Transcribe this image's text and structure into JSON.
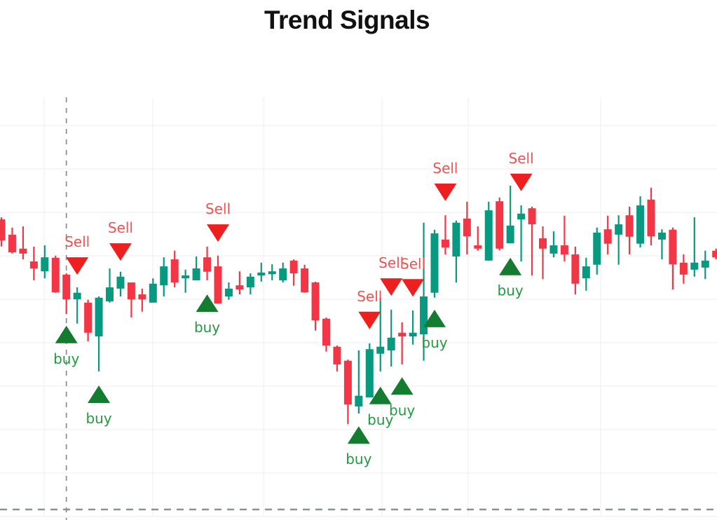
{
  "title": "Trend Signals",
  "colors": {
    "background": "#ffffff",
    "title": "#111111",
    "candle_up": "#089981",
    "candle_down": "#f23645",
    "buy_marker": "#147c2e",
    "buy_label": "#1f9c3f",
    "sell_marker": "#ee1f1f",
    "sell_label": "#f15252",
    "grid": "#ececec",
    "dashed_line": "#8b919a"
  },
  "chart_data": {
    "type": "candlestick",
    "title": "Trend Signals",
    "xlabel": "",
    "ylabel": "",
    "ylim": [
      0,
      100
    ],
    "grid": true,
    "legend": "none",
    "ohlc_note": "values in relative price units 0-100, candles left to right, format [open, high, low, close]",
    "candles": [
      [
        70.4,
        70.9,
        63.8,
        65.3
      ],
      [
        66.7,
        68.4,
        62.1,
        62.4
      ],
      [
        63.3,
        68.7,
        60.7,
        62.1
      ],
      [
        60.2,
        63.8,
        55.6,
        58.5
      ],
      [
        57.8,
        64.1,
        56.1,
        61.2
      ],
      [
        61.1,
        61.6,
        52.6,
        52.7
      ],
      [
        57.0,
        57.3,
        47.4,
        51.0
      ],
      [
        51.0,
        53.9,
        45.1,
        52.6
      ],
      [
        50.2,
        50.9,
        40.8,
        42.9
      ],
      [
        42.0,
        51.7,
        33.5,
        51.4
      ],
      [
        50.5,
        58.5,
        50.2,
        53.9
      ],
      [
        53.6,
        57.7,
        51.7,
        56.5
      ],
      [
        55.1,
        55.1,
        46.6,
        51.0
      ],
      [
        52.2,
        53.6,
        48.0,
        51.0
      ],
      [
        50.2,
        56.1,
        50.2,
        54.8
      ],
      [
        54.4,
        61.2,
        51.7,
        59.0
      ],
      [
        60.7,
        62.8,
        53.9,
        55.1
      ],
      [
        56.1,
        58.2,
        52.6,
        56.8
      ],
      [
        55.6,
        61.4,
        55.6,
        58.5
      ],
      [
        61.2,
        63.8,
        55.6,
        57.7
      ],
      [
        59.0,
        61.6,
        50.0,
        50.0
      ],
      [
        51.7,
        55.1,
        50.9,
        53.6
      ],
      [
        54.4,
        57.8,
        52.2,
        53.4
      ],
      [
        53.9,
        57.3,
        52.2,
        56.5
      ],
      [
        56.8,
        59.9,
        55.3,
        57.5
      ],
      [
        57.1,
        59.5,
        55.6,
        57.8
      ],
      [
        55.6,
        59.9,
        55.1,
        58.5
      ],
      [
        60.4,
        60.7,
        54.3,
        57.3
      ],
      [
        58.5,
        59.4,
        52.6,
        52.7
      ],
      [
        55.1,
        55.3,
        43.4,
        45.9
      ],
      [
        46.3,
        46.6,
        38.3,
        39.8
      ],
      [
        39.5,
        39.8,
        33.5,
        35.2
      ],
      [
        36.1,
        36.4,
        20.7,
        25.5
      ],
      [
        25.0,
        38.6,
        23.3,
        27.6
      ],
      [
        27.2,
        40.3,
        27.2,
        38.9
      ],
      [
        37.8,
        51.4,
        33.5,
        39.5
      ],
      [
        38.6,
        48.5,
        34.7,
        41.7
      ],
      [
        42.9,
        45.4,
        35.2,
        42.0
      ],
      [
        42.0,
        48.3,
        40.0,
        42.9
      ],
      [
        42.5,
        69.6,
        36.1,
        51.7
      ],
      [
        52.6,
        67.9,
        51.4,
        67.0
      ],
      [
        65.5,
        71.4,
        61.9,
        63.6
      ],
      [
        61.4,
        70.1,
        55.1,
        69.6
      ],
      [
        70.6,
        74.7,
        61.9,
        66.3
      ],
      [
        64.1,
        68.7,
        62.8,
        63.3
      ],
      [
        60.4,
        74.7,
        60.4,
        72.6
      ],
      [
        74.8,
        75.7,
        62.9,
        63.3
      ],
      [
        64.6,
        78.6,
        64.6,
        68.9
      ],
      [
        70.4,
        73.8,
        60.2,
        71.8
      ],
      [
        73.1,
        73.5,
        56.8,
        69.2
      ],
      [
        65.8,
        68.7,
        55.9,
        63.3
      ],
      [
        62.1,
        67.5,
        61.2,
        64.1
      ],
      [
        64.1,
        71.3,
        60.2,
        61.9
      ],
      [
        61.9,
        63.8,
        52.2,
        54.8
      ],
      [
        56.1,
        61.1,
        53.1,
        59.0
      ],
      [
        59.4,
        68.4,
        57.0,
        67.2
      ],
      [
        68.0,
        71.3,
        61.9,
        64.5
      ],
      [
        66.7,
        71.4,
        59.4,
        69.2
      ],
      [
        71.4,
        73.5,
        61.9,
        66.2
      ],
      [
        64.5,
        76.0,
        63.6,
        73.8
      ],
      [
        75.2,
        78.1,
        64.1,
        66.3
      ],
      [
        65.5,
        68.0,
        60.7,
        67.2
      ],
      [
        67.9,
        68.4,
        53.4,
        59.5
      ],
      [
        59.9,
        61.9,
        54.8,
        57.0
      ],
      [
        58.2,
        70.9,
        56.5,
        59.9
      ],
      [
        58.7,
        62.8,
        55.9,
        60.4
      ],
      [
        62.8,
        63.3,
        60.7,
        61.2
      ]
    ],
    "signals": [
      {
        "candle": 6,
        "type": "buy",
        "label": "buy",
        "level": 44.6
      },
      {
        "candle": 7,
        "type": "sell",
        "label": "Sell",
        "level": 61.2
      },
      {
        "candle": 9,
        "type": "buy",
        "label": "buy",
        "level": 30.1
      },
      {
        "candle": 11,
        "type": "sell",
        "label": "Sell",
        "level": 64.6
      },
      {
        "candle": 19,
        "type": "buy",
        "label": "buy",
        "level": 52.2
      },
      {
        "candle": 20,
        "type": "sell",
        "label": "Sell",
        "level": 69.2
      },
      {
        "candle": 33,
        "type": "buy",
        "label": "buy",
        "level": 20.2
      },
      {
        "candle": 34,
        "type": "sell",
        "label": "Sell",
        "level": 48.0
      },
      {
        "candle": 35,
        "type": "buy",
        "label": "buy",
        "level": 29.8
      },
      {
        "candle": 36,
        "type": "sell",
        "label": "Sell",
        "level": 56.1
      },
      {
        "candle": 37,
        "type": "buy",
        "label": "buy",
        "level": 32.1
      },
      {
        "candle": 38,
        "type": "sell",
        "label": "Sell",
        "level": 55.9
      },
      {
        "candle": 40,
        "type": "buy",
        "label": "buy",
        "level": 48.5
      },
      {
        "candle": 41,
        "type": "sell",
        "label": "Sell",
        "level": 79.1
      },
      {
        "candle": 47,
        "type": "buy",
        "label": "buy",
        "level": 61.1
      },
      {
        "candle": 48,
        "type": "sell",
        "label": "Sell",
        "level": 81.5
      }
    ],
    "reference_lines": [
      {
        "orientation": "vertical",
        "style": "dashed",
        "at_candle": 6
      },
      {
        "orientation": "horizontal",
        "style": "dashed",
        "at_value": 0
      }
    ]
  }
}
